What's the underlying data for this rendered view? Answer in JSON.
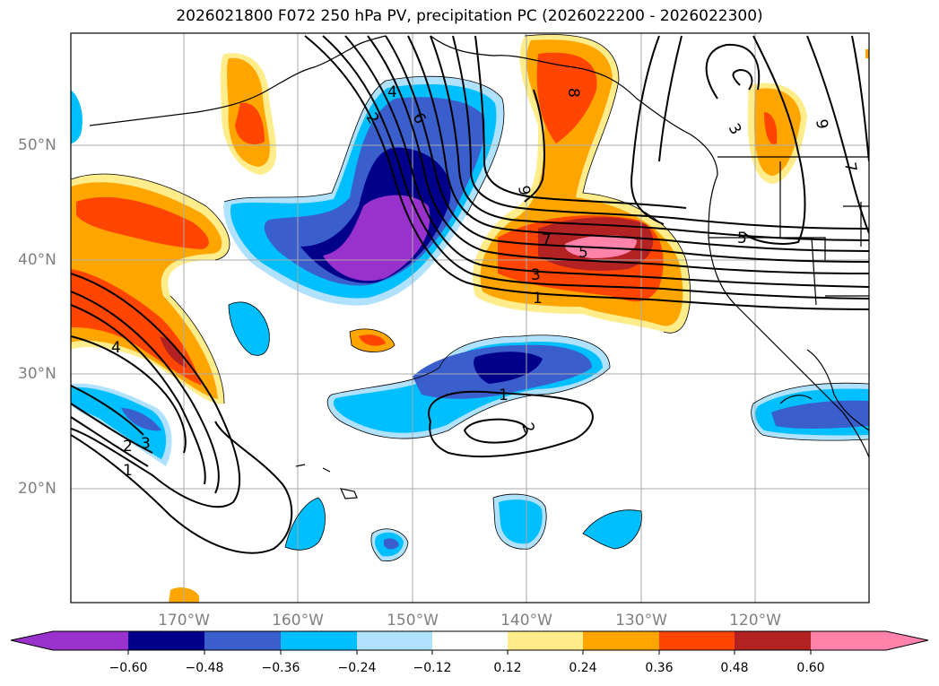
{
  "title": "2026021800 F072 250 hPa PV, precipitation PC (2026022200 - 2026022300)",
  "latitude_labels": [
    "50°N",
    "40°N",
    "30°N",
    "20°N"
  ],
  "longitude_labels": [
    "170°W",
    "160°W",
    "150°W",
    "140°W",
    "130°W",
    "120°W"
  ],
  "colorbar": {
    "ticks": [
      "−0.60",
      "−0.48",
      "−0.36",
      "−0.24",
      "−0.12",
      "0.12",
      "0.24",
      "0.36",
      "0.48",
      "0.60"
    ],
    "colors": [
      "#9932cc",
      "#00008b",
      "#3a5fcd",
      "#00bfff",
      "#b0e2ff",
      "#ffffff",
      "#ffec8b",
      "#ffa500",
      "#ff4500",
      "#b22222",
      "#ff82ab"
    ]
  },
  "contour_labels": {
    "c1": "1",
    "c2": "2",
    "c3": "3",
    "c4": "4",
    "c5": "5",
    "c6": "6",
    "c7": "7",
    "c8": "8",
    "c9": "9"
  }
}
